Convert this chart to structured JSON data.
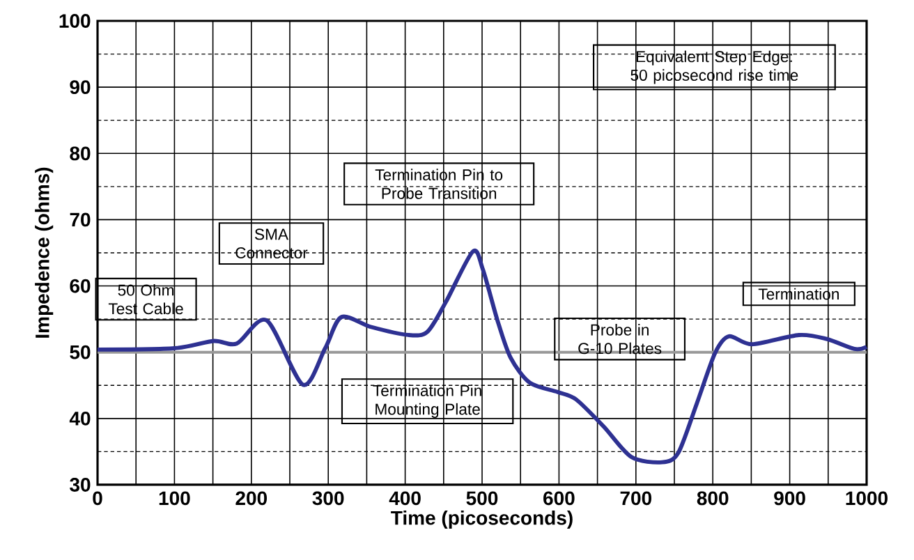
{
  "chart_data": {
    "type": "line",
    "xlabel": "Time (picoseconds)",
    "ylabel": "Impedence (ohms)",
    "xlim": [
      0,
      1000
    ],
    "ylim": [
      30,
      100
    ],
    "xticks": [
      0,
      100,
      200,
      300,
      400,
      500,
      600,
      700,
      800,
      900,
      1000
    ],
    "yticks": [
      30,
      40,
      50,
      60,
      70,
      80,
      90,
      100
    ],
    "grid": true,
    "marker": "none",
    "line_style": "solid",
    "ref_lines": [
      {
        "axis": "y",
        "value": 50,
        "color": "#999999"
      }
    ],
    "annotations": [
      "50 Ohm Test Cable",
      "SMA Connector",
      "Termination Pin to Probe Transition",
      "Equivalent Step Edge: 50 picosecond rise time",
      "Termination Pin Mounting Plate",
      "Probe in G-10 Plates",
      "Termination"
    ],
    "series": [
      {
        "color": "#2e3192",
        "x": [
          0,
          100,
          151,
          181,
          220,
          267,
          296,
          317,
          356,
          404,
          429,
          453,
          488,
          501,
          520,
          537,
          562,
          598,
          622,
          658,
          694,
          734,
          755,
          779,
          803,
          821,
          851,
          912,
          948,
          984,
          1000
        ],
        "values": [
          50.4,
          50.6,
          51.7,
          51.3,
          54.8,
          45.1,
          50.6,
          55.3,
          53.8,
          52.6,
          53.1,
          57.6,
          65.2,
          62.5,
          54.8,
          49.2,
          45.4,
          44.0,
          42.9,
          38.8,
          34.2,
          33.4,
          34.8,
          42.2,
          49.9,
          52.4,
          51.2,
          52.6,
          52.0,
          50.5,
          50.8
        ]
      }
    ]
  }
}
